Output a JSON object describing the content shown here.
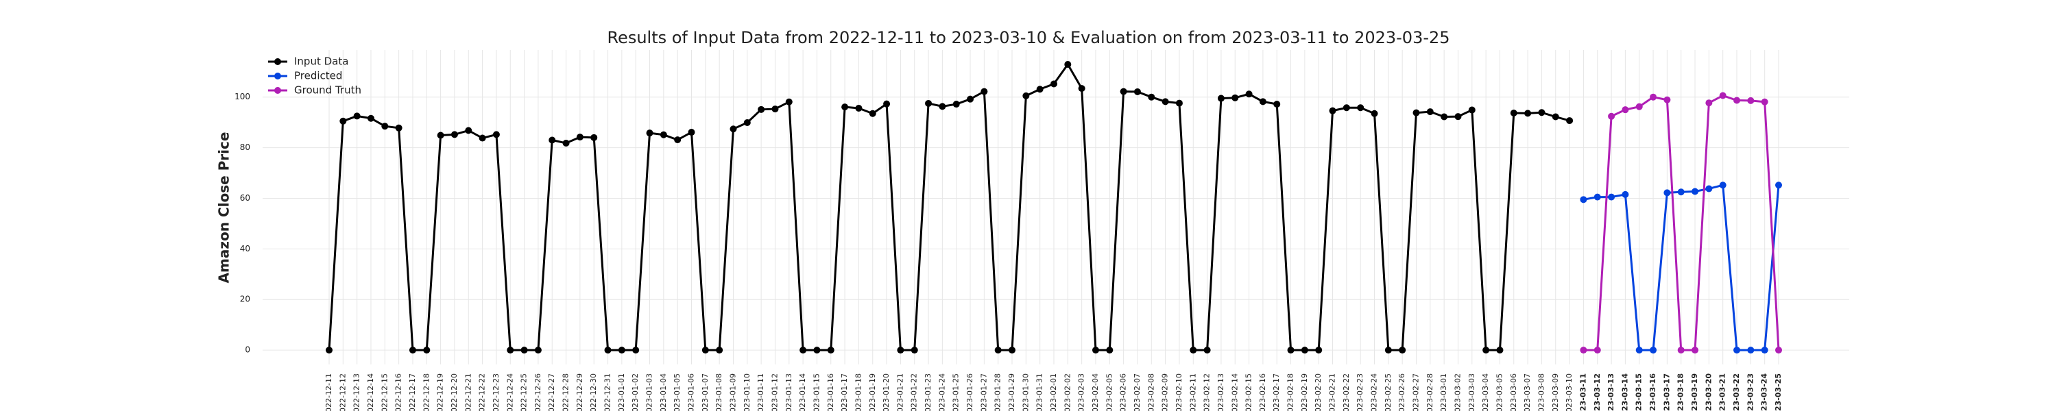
{
  "chart_data": {
    "type": "line",
    "title": "Results of Input Data from 2022-12-11 to 2023-03-10 & Evaluation on from 2023-03-11 to 2023-03-25",
    "y_label": "Amazon Close Price",
    "categories": [
      "2022-12-11",
      "2022-12-12",
      "2022-12-13",
      "2022-12-14",
      "2022-12-15",
      "2022-12-16",
      "2022-12-17",
      "2022-12-18",
      "2022-12-19",
      "2022-12-20",
      "2022-12-21",
      "2022-12-22",
      "2022-12-23",
      "2022-12-24",
      "2022-12-25",
      "2022-12-26",
      "2022-12-27",
      "2022-12-28",
      "2022-12-29",
      "2022-12-30",
      "2022-12-31",
      "2023-01-01",
      "2023-01-02",
      "2023-01-03",
      "2023-01-04",
      "2023-01-05",
      "2023-01-06",
      "2023-01-07",
      "2023-01-08",
      "2023-01-09",
      "2023-01-10",
      "2023-01-11",
      "2023-01-12",
      "2023-01-13",
      "2023-01-14",
      "2023-01-15",
      "2023-01-16",
      "2023-01-17",
      "2023-01-18",
      "2023-01-19",
      "2023-01-20",
      "2023-01-21",
      "2023-01-22",
      "2023-01-23",
      "2023-01-24",
      "2023-01-25",
      "2023-01-26",
      "2023-01-27",
      "2023-01-28",
      "2023-01-29",
      "2023-01-30",
      "2023-01-31",
      "2023-02-01",
      "2023-02-02",
      "2023-02-03",
      "2023-02-04",
      "2023-02-05",
      "2023-02-06",
      "2023-02-07",
      "2023-02-08",
      "2023-02-09",
      "2023-02-10",
      "2023-02-11",
      "2023-02-12",
      "2023-02-13",
      "2023-02-14",
      "2023-02-15",
      "2023-02-16",
      "2023-02-17",
      "2023-02-18",
      "2023-02-19",
      "2023-02-20",
      "2023-02-21",
      "2023-02-22",
      "2023-02-23",
      "2023-02-24",
      "2023-02-25",
      "2023-02-26",
      "2023-02-27",
      "2023-02-28",
      "2023-03-01",
      "2023-03-02",
      "2023-03-03",
      "2023-03-04",
      "2023-03-05",
      "2023-03-06",
      "2023-03-07",
      "2023-03-08",
      "2023-03-09",
      "2023-03-10",
      "2023-03-11",
      "2023-03-12",
      "2023-03-13",
      "2023-03-14",
      "2023-03-15",
      "2023-03-16",
      "2023-03-17",
      "2023-03-18",
      "2023-03-19",
      "2023-03-20",
      "2023-03-21",
      "2023-03-22",
      "2023-03-23",
      "2023-03-24",
      "2023-03-25"
    ],
    "series": [
      {
        "name": "Input Data",
        "color": "#000000",
        "values": [
          0,
          90.5,
          92.5,
          91.6,
          88.5,
          87.8,
          0,
          0,
          84.9,
          85.2,
          86.8,
          83.8,
          85.2,
          0,
          0,
          0,
          83,
          81.8,
          84.2,
          84,
          0,
          0,
          0,
          85.8,
          85.1,
          83.1,
          86.1,
          0,
          0,
          87.4,
          89.9,
          95.1,
          95.3,
          98.1,
          0,
          0,
          0,
          96.1,
          95.6,
          93.5,
          97.3,
          0,
          0,
          97.5,
          96.3,
          97.2,
          99.2,
          102.2,
          0,
          0,
          100.5,
          103.1,
          105.2,
          112.9,
          103.4,
          0,
          0,
          102.2,
          102.1,
          100,
          98.2,
          97.6,
          0,
          0,
          99.5,
          99.7,
          101.2,
          98.2,
          97.2,
          0,
          0,
          0,
          94.6,
          95.8,
          95.8,
          93.5,
          0,
          0,
          93.8,
          94.2,
          92.2,
          92.3,
          94.9,
          0,
          0,
          93.7,
          93.6,
          93.9,
          92.2,
          90.7,
          null,
          null,
          null,
          null,
          null,
          null,
          null,
          null,
          null,
          null,
          null,
          null,
          null,
          null,
          null
        ]
      },
      {
        "name": "Predicted",
        "color": "#0343df",
        "values": [
          null,
          null,
          null,
          null,
          null,
          null,
          null,
          null,
          null,
          null,
          null,
          null,
          null,
          null,
          null,
          null,
          null,
          null,
          null,
          null,
          null,
          null,
          null,
          null,
          null,
          null,
          null,
          null,
          null,
          null,
          null,
          null,
          null,
          null,
          null,
          null,
          null,
          null,
          null,
          null,
          null,
          null,
          null,
          null,
          null,
          null,
          null,
          null,
          null,
          null,
          null,
          null,
          null,
          null,
          null,
          null,
          null,
          null,
          null,
          null,
          null,
          null,
          null,
          null,
          null,
          null,
          null,
          null,
          null,
          null,
          null,
          null,
          null,
          null,
          null,
          null,
          null,
          null,
          null,
          null,
          null,
          null,
          null,
          null,
          null,
          null,
          null,
          null,
          null,
          null,
          59.5,
          60.5,
          60.5,
          61.5,
          0,
          0,
          62.2,
          62.5,
          62.7,
          63.8,
          65.2,
          0,
          0,
          0,
          65.2
        ]
      },
      {
        "name": "Ground Truth",
        "color": "#b01fb5",
        "values": [
          null,
          null,
          null,
          null,
          null,
          null,
          null,
          null,
          null,
          null,
          null,
          null,
          null,
          null,
          null,
          null,
          null,
          null,
          null,
          null,
          null,
          null,
          null,
          null,
          null,
          null,
          null,
          null,
          null,
          null,
          null,
          null,
          null,
          null,
          null,
          null,
          null,
          null,
          null,
          null,
          null,
          null,
          null,
          null,
          null,
          null,
          null,
          null,
          null,
          null,
          null,
          null,
          null,
          null,
          null,
          null,
          null,
          null,
          null,
          null,
          null,
          null,
          null,
          null,
          null,
          null,
          null,
          null,
          null,
          null,
          null,
          null,
          null,
          null,
          null,
          null,
          null,
          null,
          null,
          null,
          null,
          null,
          null,
          null,
          null,
          null,
          null,
          null,
          null,
          null,
          0,
          0,
          92.4,
          95,
          96.2,
          100,
          98.9,
          0,
          0,
          97.7,
          100.6,
          98.7,
          98.6,
          98.1,
          0
        ]
      }
    ],
    "ylim": [
      -5.65,
      118.6
    ],
    "yticks": [
      0,
      20,
      40,
      60,
      80,
      100
    ],
    "grid": true,
    "legend": "upper left"
  }
}
